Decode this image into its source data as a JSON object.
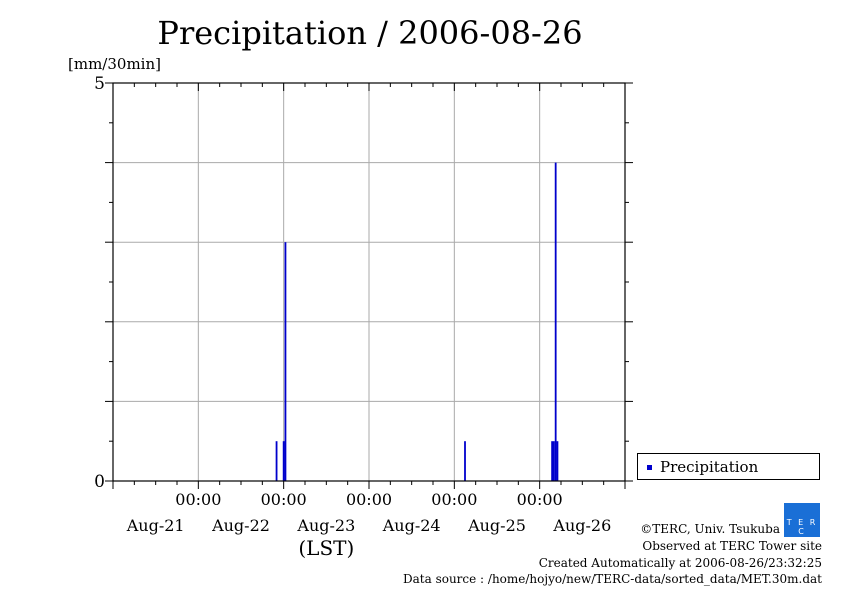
{
  "chart_data": {
    "type": "bar",
    "title": "Precipitation / 2006-08-26",
    "ylabel": "[mm/30min]",
    "xlabel": "(LST)",
    "ylim": [
      0,
      5
    ],
    "yticks": [
      "0",
      "5"
    ],
    "x_range_hours_from_aug21_0000": [
      0,
      144
    ],
    "xtick_time_labels": [
      "00:00",
      "00:00",
      "00:00",
      "00:00",
      "00:00"
    ],
    "xtick_date_labels": [
      "Aug-21",
      "Aug-22",
      "Aug-23",
      "Aug-24",
      "Aug-25",
      "Aug-26"
    ],
    "grid": true,
    "legend": {
      "position": "right-bottom",
      "entries": [
        "Precipitation"
      ]
    },
    "series": [
      {
        "name": "Precipitation",
        "color": "#0000cc",
        "points": [
          {
            "time": "Aug-22 22:00",
            "hour": 46,
            "value": 0.5
          },
          {
            "time": "Aug-23 00:00",
            "hour": 48,
            "value": 0.5
          },
          {
            "time": "Aug-23 00:30",
            "hour": 48.5,
            "value": 3.0
          },
          {
            "time": "Aug-25 03:00",
            "hour": 99,
            "value": 0.5
          },
          {
            "time": "Aug-26 03:30",
            "hour": 123.5,
            "value": 0.5
          },
          {
            "time": "Aug-26 04:00",
            "hour": 124,
            "value": 0.5
          },
          {
            "time": "Aug-26 04:30",
            "hour": 124.5,
            "value": 4.0
          },
          {
            "time": "Aug-26 05:00",
            "hour": 125,
            "value": 0.5
          }
        ]
      }
    ]
  },
  "credits": {
    "copyright": "©TERC, Univ. Tsukuba",
    "observed": "Observed at TERC Tower site",
    "created": "Created Automatically at 2006-08-26/23:32:25",
    "source": "Data source : /home/hojyo/new/TERC-data/sorted_data/MET.30m.dat",
    "logo_text": "TERC"
  }
}
